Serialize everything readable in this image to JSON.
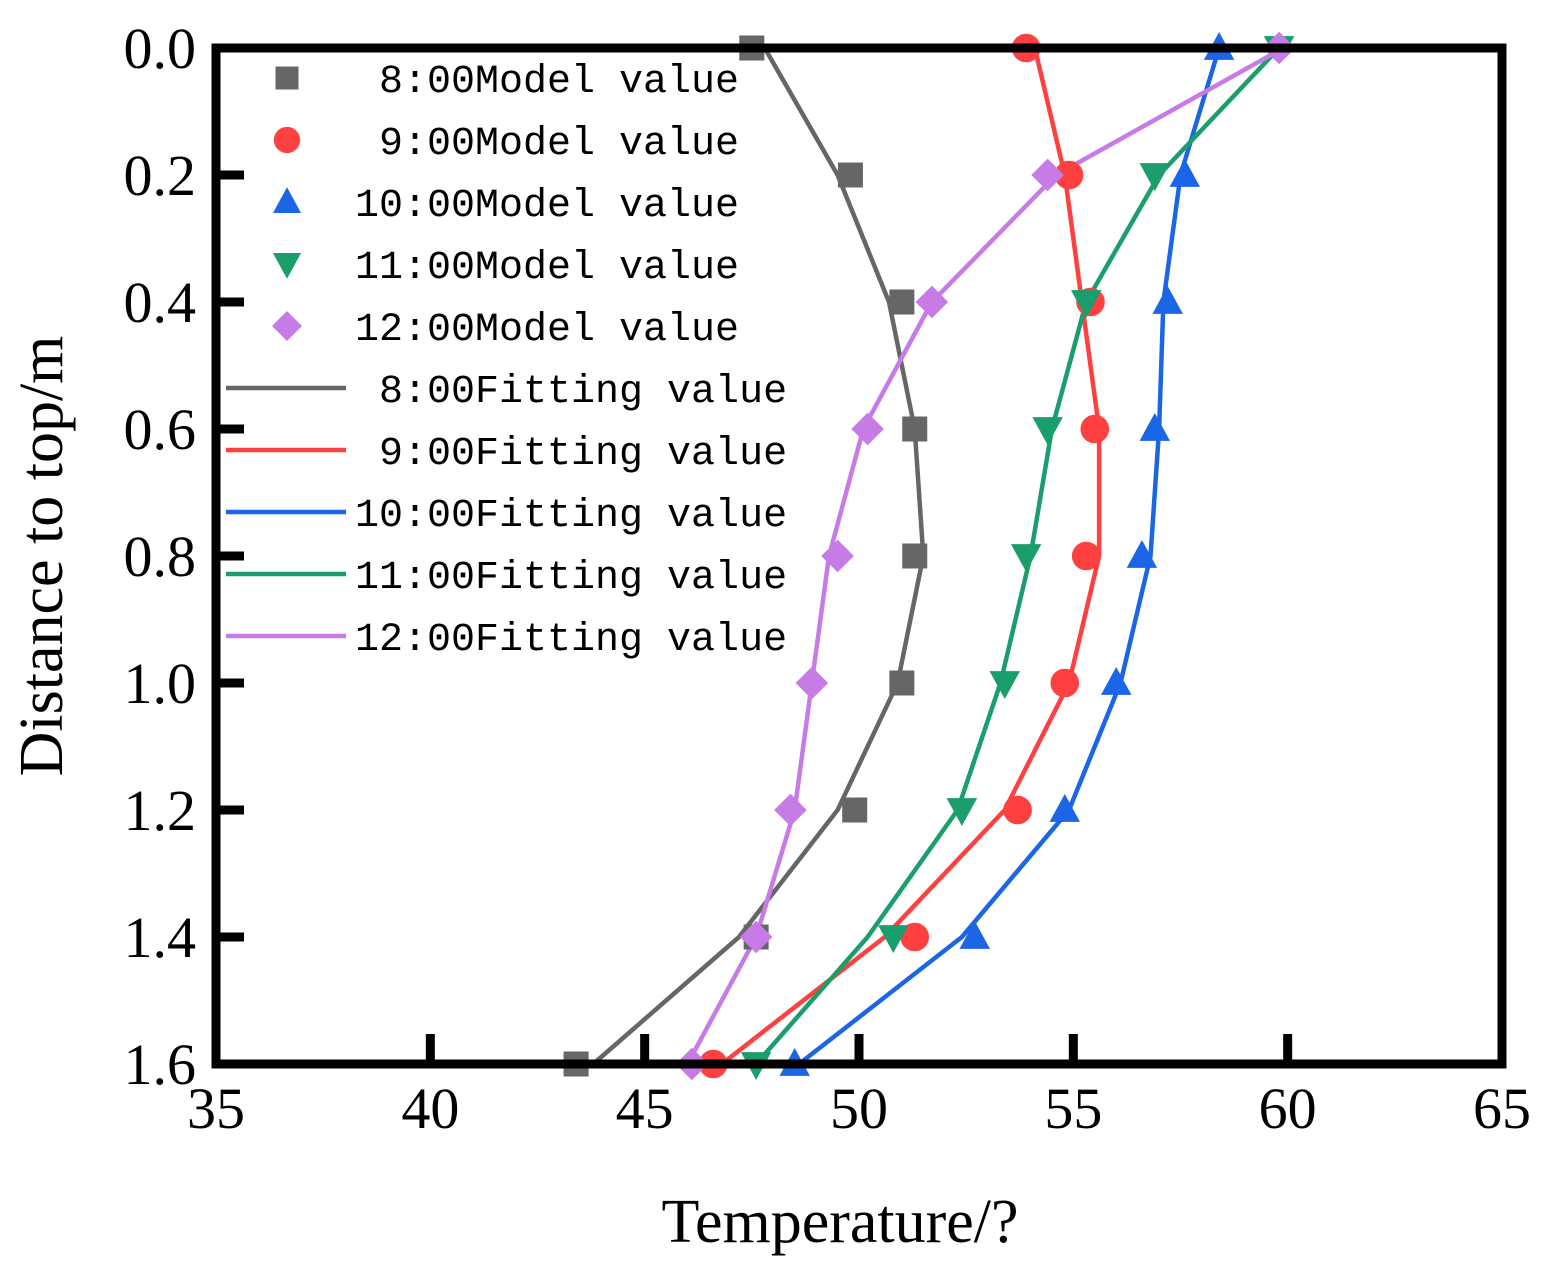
{
  "chart_data": {
    "type": "scatter",
    "title": "",
    "xlabel": "Temperature/?",
    "ylabel": "Distance to top/m",
    "xlim": [
      35,
      65
    ],
    "ylim": [
      0.0,
      1.6
    ],
    "y_inverted": true,
    "xticks": [
      "35",
      "40",
      "45",
      "50",
      "55",
      "60",
      "65"
    ],
    "yticks": [
      "0.0",
      "0.2",
      "0.4",
      "0.6",
      "0.8",
      "1.0",
      "1.2",
      "1.4",
      "1.6"
    ],
    "grid": false,
    "legend_position": "top-left",
    "depth": [
      0.0,
      0.2,
      0.4,
      0.6,
      0.8,
      1.0,
      1.2,
      1.4,
      1.6
    ],
    "series": [
      {
        "time": "8:00",
        "model_name": " 8:00Model value",
        "fit_name": " 8:00Fitting value",
        "color": "#666666",
        "marker": "square",
        "model": [
          47.5,
          49.8,
          51.0,
          51.3,
          51.3,
          51.0,
          49.9,
          47.6,
          43.4
        ],
        "fit": [
          47.8,
          49.5,
          50.7,
          51.3,
          51.5,
          50.9,
          49.5,
          47.2,
          43.8
        ]
      },
      {
        "time": "9:00",
        "model_name": " 9:00Model value",
        "fit_name": " 9:00Fitting value",
        "color": "#ff4040",
        "marker": "circle",
        "model": [
          53.9,
          54.9,
          55.4,
          55.5,
          55.3,
          54.8,
          53.7,
          51.3,
          46.6
        ],
        "fit": [
          54.1,
          54.8,
          55.2,
          55.6,
          55.6,
          54.9,
          53.4,
          50.6,
          46.8
        ]
      },
      {
        "time": "10:00",
        "model_name": "10:00Model value",
        "fit_name": "10:00Fitting value",
        "color": "#1a66e6",
        "marker": "triangle-up",
        "model": [
          58.4,
          57.6,
          57.2,
          56.9,
          56.6,
          56.0,
          54.8,
          52.7,
          48.5
        ],
        "fit": [
          58.4,
          57.5,
          57.1,
          57.0,
          56.8,
          56.1,
          54.9,
          52.4,
          48.6
        ]
      },
      {
        "time": "11:00",
        "model_name": "11:00Model value",
        "fit_name": "11:00Fitting value",
        "color": "#1a9e6b",
        "marker": "triangle-down",
        "model": [
          59.8,
          56.9,
          55.3,
          54.4,
          53.9,
          53.4,
          52.4,
          50.8,
          47.6
        ],
        "fit": [
          59.8,
          57.0,
          55.3,
          54.5,
          54.0,
          53.3,
          52.3,
          50.2,
          47.6
        ]
      },
      {
        "time": "12:00",
        "model_name": "12:00Model value",
        "fit_name": "12:00Fitting value",
        "color": "#c77be6",
        "marker": "diamond",
        "model": [
          59.8,
          54.4,
          51.7,
          50.2,
          49.5,
          48.9,
          48.4,
          47.6,
          46.1
        ],
        "fit": [
          59.9,
          54.6,
          51.7,
          50.1,
          49.3,
          48.9,
          48.5,
          47.6,
          46.0
        ]
      }
    ]
  }
}
